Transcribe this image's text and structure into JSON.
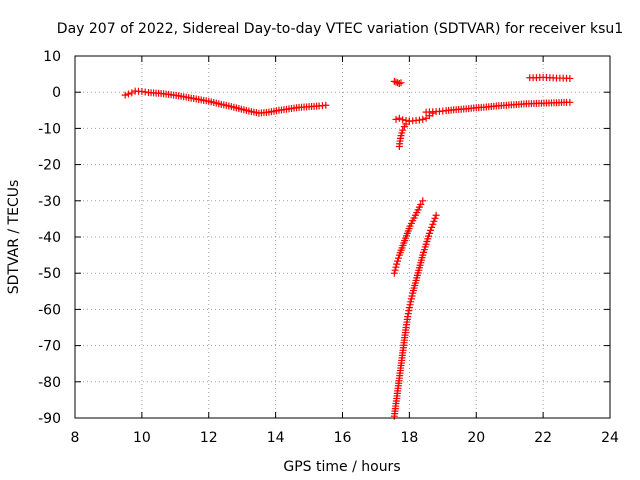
{
  "chart_data": {
    "type": "scatter",
    "title": "Day 207 of 2022, Sidereal Day-to-day VTEC variation (SDTVAR) for receiver ksu1",
    "xlabel": "GPS time / hours",
    "ylabel": "SDTVAR / TECUs",
    "xlim": [
      8,
      24
    ],
    "ylim": [
      -90,
      10
    ],
    "xticks": [
      "8",
      "10",
      "12",
      "14",
      "16",
      "18",
      "20",
      "22",
      "24"
    ],
    "yticks": [
      "10",
      "0",
      "-10",
      "-20",
      "-30",
      "-40",
      "-50",
      "-60",
      "-70",
      "-80",
      "-90"
    ],
    "grid": true,
    "marker": "+",
    "color": "#ff0000",
    "series": [
      {
        "name": "arc-main-morning",
        "x": [
          9.5,
          9.7,
          9.8,
          10.0,
          10.2,
          10.5,
          10.8,
          11.1,
          11.4,
          11.7,
          12.0,
          12.3,
          12.6,
          12.9,
          13.2,
          13.5,
          13.8,
          14.1,
          14.4,
          14.7,
          15.0,
          15.3,
          15.5
        ],
        "y": [
          -0.8,
          -0.2,
          0.3,
          0.2,
          -0.1,
          -0.3,
          -0.6,
          -1.0,
          -1.5,
          -2.0,
          -2.5,
          -3.2,
          -3.8,
          -4.5,
          -5.2,
          -5.8,
          -5.5,
          -5.0,
          -4.6,
          -4.2,
          -4.0,
          -3.8,
          -3.6
        ]
      },
      {
        "name": "arc-small-17.7",
        "x": [
          17.55,
          17.6,
          17.65,
          17.7,
          17.75
        ],
        "y": [
          3.0,
          2.8,
          2.6,
          2.4,
          2.6
        ]
      },
      {
        "name": "arc-dip-17.7",
        "x": [
          17.7,
          17.72,
          17.75,
          17.8,
          17.85,
          17.9,
          18.0
        ],
        "y": [
          -15.0,
          -13.5,
          -12.0,
          -10.5,
          -9.5,
          -8.8,
          -8.0
        ]
      },
      {
        "name": "arc-flat-17.7",
        "x": [
          17.6,
          17.7,
          17.8,
          17.9,
          18.0,
          18.1,
          18.2,
          18.3,
          18.4,
          18.5,
          18.6,
          18.7
        ],
        "y": [
          -7.5,
          -7.2,
          -7.6,
          -7.8,
          -8.0,
          -7.9,
          -7.8,
          -7.7,
          -7.5,
          -7.2,
          -6.5,
          -5.8
        ]
      },
      {
        "name": "arc-afternoon",
        "x": [
          18.5,
          18.7,
          18.9,
          19.1,
          19.4,
          19.7,
          20.0,
          20.3,
          20.6,
          20.9,
          21.2,
          21.5,
          21.8,
          22.1,
          22.4,
          22.7,
          22.8
        ],
        "y": [
          -5.5,
          -5.4,
          -5.3,
          -5.1,
          -4.8,
          -4.6,
          -4.3,
          -4.1,
          -3.8,
          -3.6,
          -3.4,
          -3.2,
          -3.1,
          -3.0,
          -2.9,
          -2.8,
          -2.8
        ]
      },
      {
        "name": "arc-late-high",
        "x": [
          21.6,
          21.8,
          22.0,
          22.2,
          22.4,
          22.6,
          22.8
        ],
        "y": [
          4.0,
          4.0,
          4.1,
          4.0,
          3.9,
          3.9,
          3.8
        ]
      },
      {
        "name": "arc-steep-a",
        "x": [
          17.55,
          17.62,
          17.7,
          17.78,
          17.86,
          17.94,
          18.02,
          18.1,
          18.18,
          18.26,
          18.34,
          18.4
        ],
        "y": [
          -50.0,
          -47.5,
          -45.0,
          -43.0,
          -41.0,
          -39.0,
          -37.0,
          -35.5,
          -34.0,
          -32.5,
          -31.0,
          -30.0
        ]
      },
      {
        "name": "arc-steep-b",
        "x": [
          17.55,
          17.6,
          17.65,
          17.7,
          17.75,
          17.8,
          17.85,
          17.9,
          17.95,
          18.0,
          18.1,
          18.2,
          18.3,
          18.4,
          18.5,
          18.6,
          18.7,
          18.8
        ],
        "y": [
          -89.5,
          -86.0,
          -82.5,
          -79.0,
          -75.5,
          -72.0,
          -68.5,
          -65.0,
          -62.0,
          -59.5,
          -55.5,
          -52.0,
          -48.5,
          -45.0,
          -42.0,
          -39.0,
          -36.5,
          -34.0
        ]
      }
    ]
  }
}
